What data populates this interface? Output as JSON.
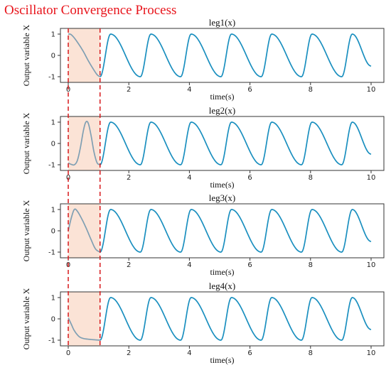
{
  "title": "Oscillator Convergence Process",
  "colors": {
    "title": "#e8141b",
    "line": "#1a8fbf",
    "transient_line": "#7f9fb3",
    "shade": "#fbe3d6",
    "dashed": "#d7191c",
    "axes": "#333333"
  },
  "chart_data": [
    {
      "type": "line",
      "title": "leg1(x)",
      "xlabel": "time(s)",
      "ylabel": "Output variable X",
      "xlim": [
        0,
        10
      ],
      "ylim": [
        -1.1,
        1.1
      ],
      "xticks": [
        "0",
        "2",
        "4",
        "6",
        "8",
        "10"
      ],
      "yticks": [
        "1",
        "0",
        "-1"
      ],
      "shaded_region": [
        0,
        1.05
      ],
      "period": 1.33,
      "series": [
        {
          "segment": "transient",
          "x": [
            0,
            0.05,
            0.1,
            0.2,
            0.35,
            0.5,
            0.65,
            0.8,
            0.95,
            1.05
          ],
          "y": [
            1.0,
            1.0,
            0.97,
            0.82,
            0.52,
            0.18,
            -0.22,
            -0.58,
            -0.9,
            -1.0
          ]
        },
        {
          "segment": "steady",
          "x": [
            1.05,
            1.4,
            2.38,
            2.73,
            3.71,
            4.06,
            5.04,
            5.39,
            6.37,
            6.72,
            7.7,
            8.05,
            9.03,
            9.38,
            10.0
          ],
          "y": [
            -1.0,
            1.0,
            -1.0,
            1.0,
            -1.0,
            1.0,
            -1.0,
            1.0,
            -1.0,
            1.0,
            -1.0,
            1.0,
            -1.0,
            1.0,
            -0.5
          ]
        }
      ]
    },
    {
      "type": "line",
      "title": "leg2(x)",
      "xlabel": "time(s)",
      "ylabel": "Output variable X",
      "xlim": [
        0,
        10
      ],
      "ylim": [
        -1.1,
        1.1
      ],
      "xticks": [
        "0",
        "2",
        "4",
        "6",
        "8",
        "10"
      ],
      "yticks": [
        "1",
        "0",
        "-1"
      ],
      "shaded_region": [
        0,
        1.05
      ],
      "period": 1.33,
      "series": [
        {
          "segment": "transient",
          "x": [
            0,
            0.1,
            0.2,
            0.3,
            0.4,
            0.5,
            0.58,
            0.66,
            0.75,
            0.85,
            0.95,
            1.05
          ],
          "y": [
            -0.92,
            -0.98,
            -1.0,
            -0.8,
            -0.2,
            0.6,
            1.0,
            0.95,
            0.4,
            -0.4,
            -0.9,
            -1.0
          ]
        },
        {
          "segment": "steady",
          "x": [
            1.05,
            1.4,
            2.38,
            2.73,
            3.71,
            4.06,
            5.04,
            5.39,
            6.37,
            6.72,
            7.7,
            8.05,
            9.03,
            9.38,
            10.0
          ],
          "y": [
            -1.0,
            1.0,
            -1.0,
            1.0,
            -1.0,
            1.0,
            -1.0,
            1.0,
            -1.0,
            1.0,
            -1.0,
            1.0,
            -1.0,
            1.0,
            -0.5
          ]
        }
      ]
    },
    {
      "type": "line",
      "title": "leg3(x)",
      "xlabel": "time(s)",
      "ylabel": "Output variable X",
      "xlim": [
        0,
        10
      ],
      "ylim": [
        -1.1,
        1.1
      ],
      "xticks": [
        "0",
        "2",
        "4",
        "6",
        "8",
        "10"
      ],
      "yticks": [
        "1",
        "0",
        "-1"
      ],
      "shaded_region": [
        0,
        1.05
      ],
      "period": 1.33,
      "series": [
        {
          "segment": "transient",
          "x": [
            0,
            0.1,
            0.2,
            0.3,
            0.45,
            0.6,
            0.75,
            0.9,
            1.05
          ],
          "y": [
            0.0,
            0.6,
            1.0,
            0.92,
            0.55,
            0.1,
            -0.4,
            -0.85,
            -1.0
          ]
        },
        {
          "segment": "steady",
          "x": [
            1.05,
            1.4,
            2.38,
            2.73,
            3.71,
            4.06,
            5.04,
            5.39,
            6.37,
            6.72,
            7.7,
            8.05,
            9.03,
            9.38,
            10.0
          ],
          "y": [
            -1.0,
            1.0,
            -1.0,
            1.0,
            -1.0,
            1.0,
            -1.0,
            1.0,
            -1.0,
            1.0,
            -1.0,
            1.0,
            -1.0,
            1.0,
            -0.5
          ]
        }
      ]
    },
    {
      "type": "line",
      "title": "leg4(x)",
      "xlabel": "time(s)",
      "ylabel": "Output variable X",
      "xlim": [
        0,
        10
      ],
      "ylim": [
        -1.1,
        1.1
      ],
      "xticks": [
        "0",
        "2",
        "4",
        "6",
        "8",
        "10"
      ],
      "yticks": [
        "1",
        "0",
        "-1"
      ],
      "shaded_region": [
        0,
        1.05
      ],
      "period": 1.33,
      "series": [
        {
          "segment": "transient",
          "x": [
            0,
            0.1,
            0.2,
            0.35,
            0.5,
            0.7,
            0.85,
            1.05
          ],
          "y": [
            0.05,
            -0.25,
            -0.55,
            -0.82,
            -0.92,
            -0.96,
            -0.98,
            -1.0
          ]
        },
        {
          "segment": "steady",
          "x": [
            1.05,
            1.4,
            2.38,
            2.73,
            3.71,
            4.06,
            5.04,
            5.39,
            6.37,
            6.72,
            7.7,
            8.05,
            9.03,
            9.38,
            10.0
          ],
          "y": [
            -1.0,
            1.0,
            -1.0,
            1.0,
            -1.0,
            1.0,
            -1.0,
            1.0,
            -1.0,
            1.0,
            -1.0,
            1.0,
            -1.0,
            1.0,
            -0.5
          ]
        }
      ]
    }
  ]
}
